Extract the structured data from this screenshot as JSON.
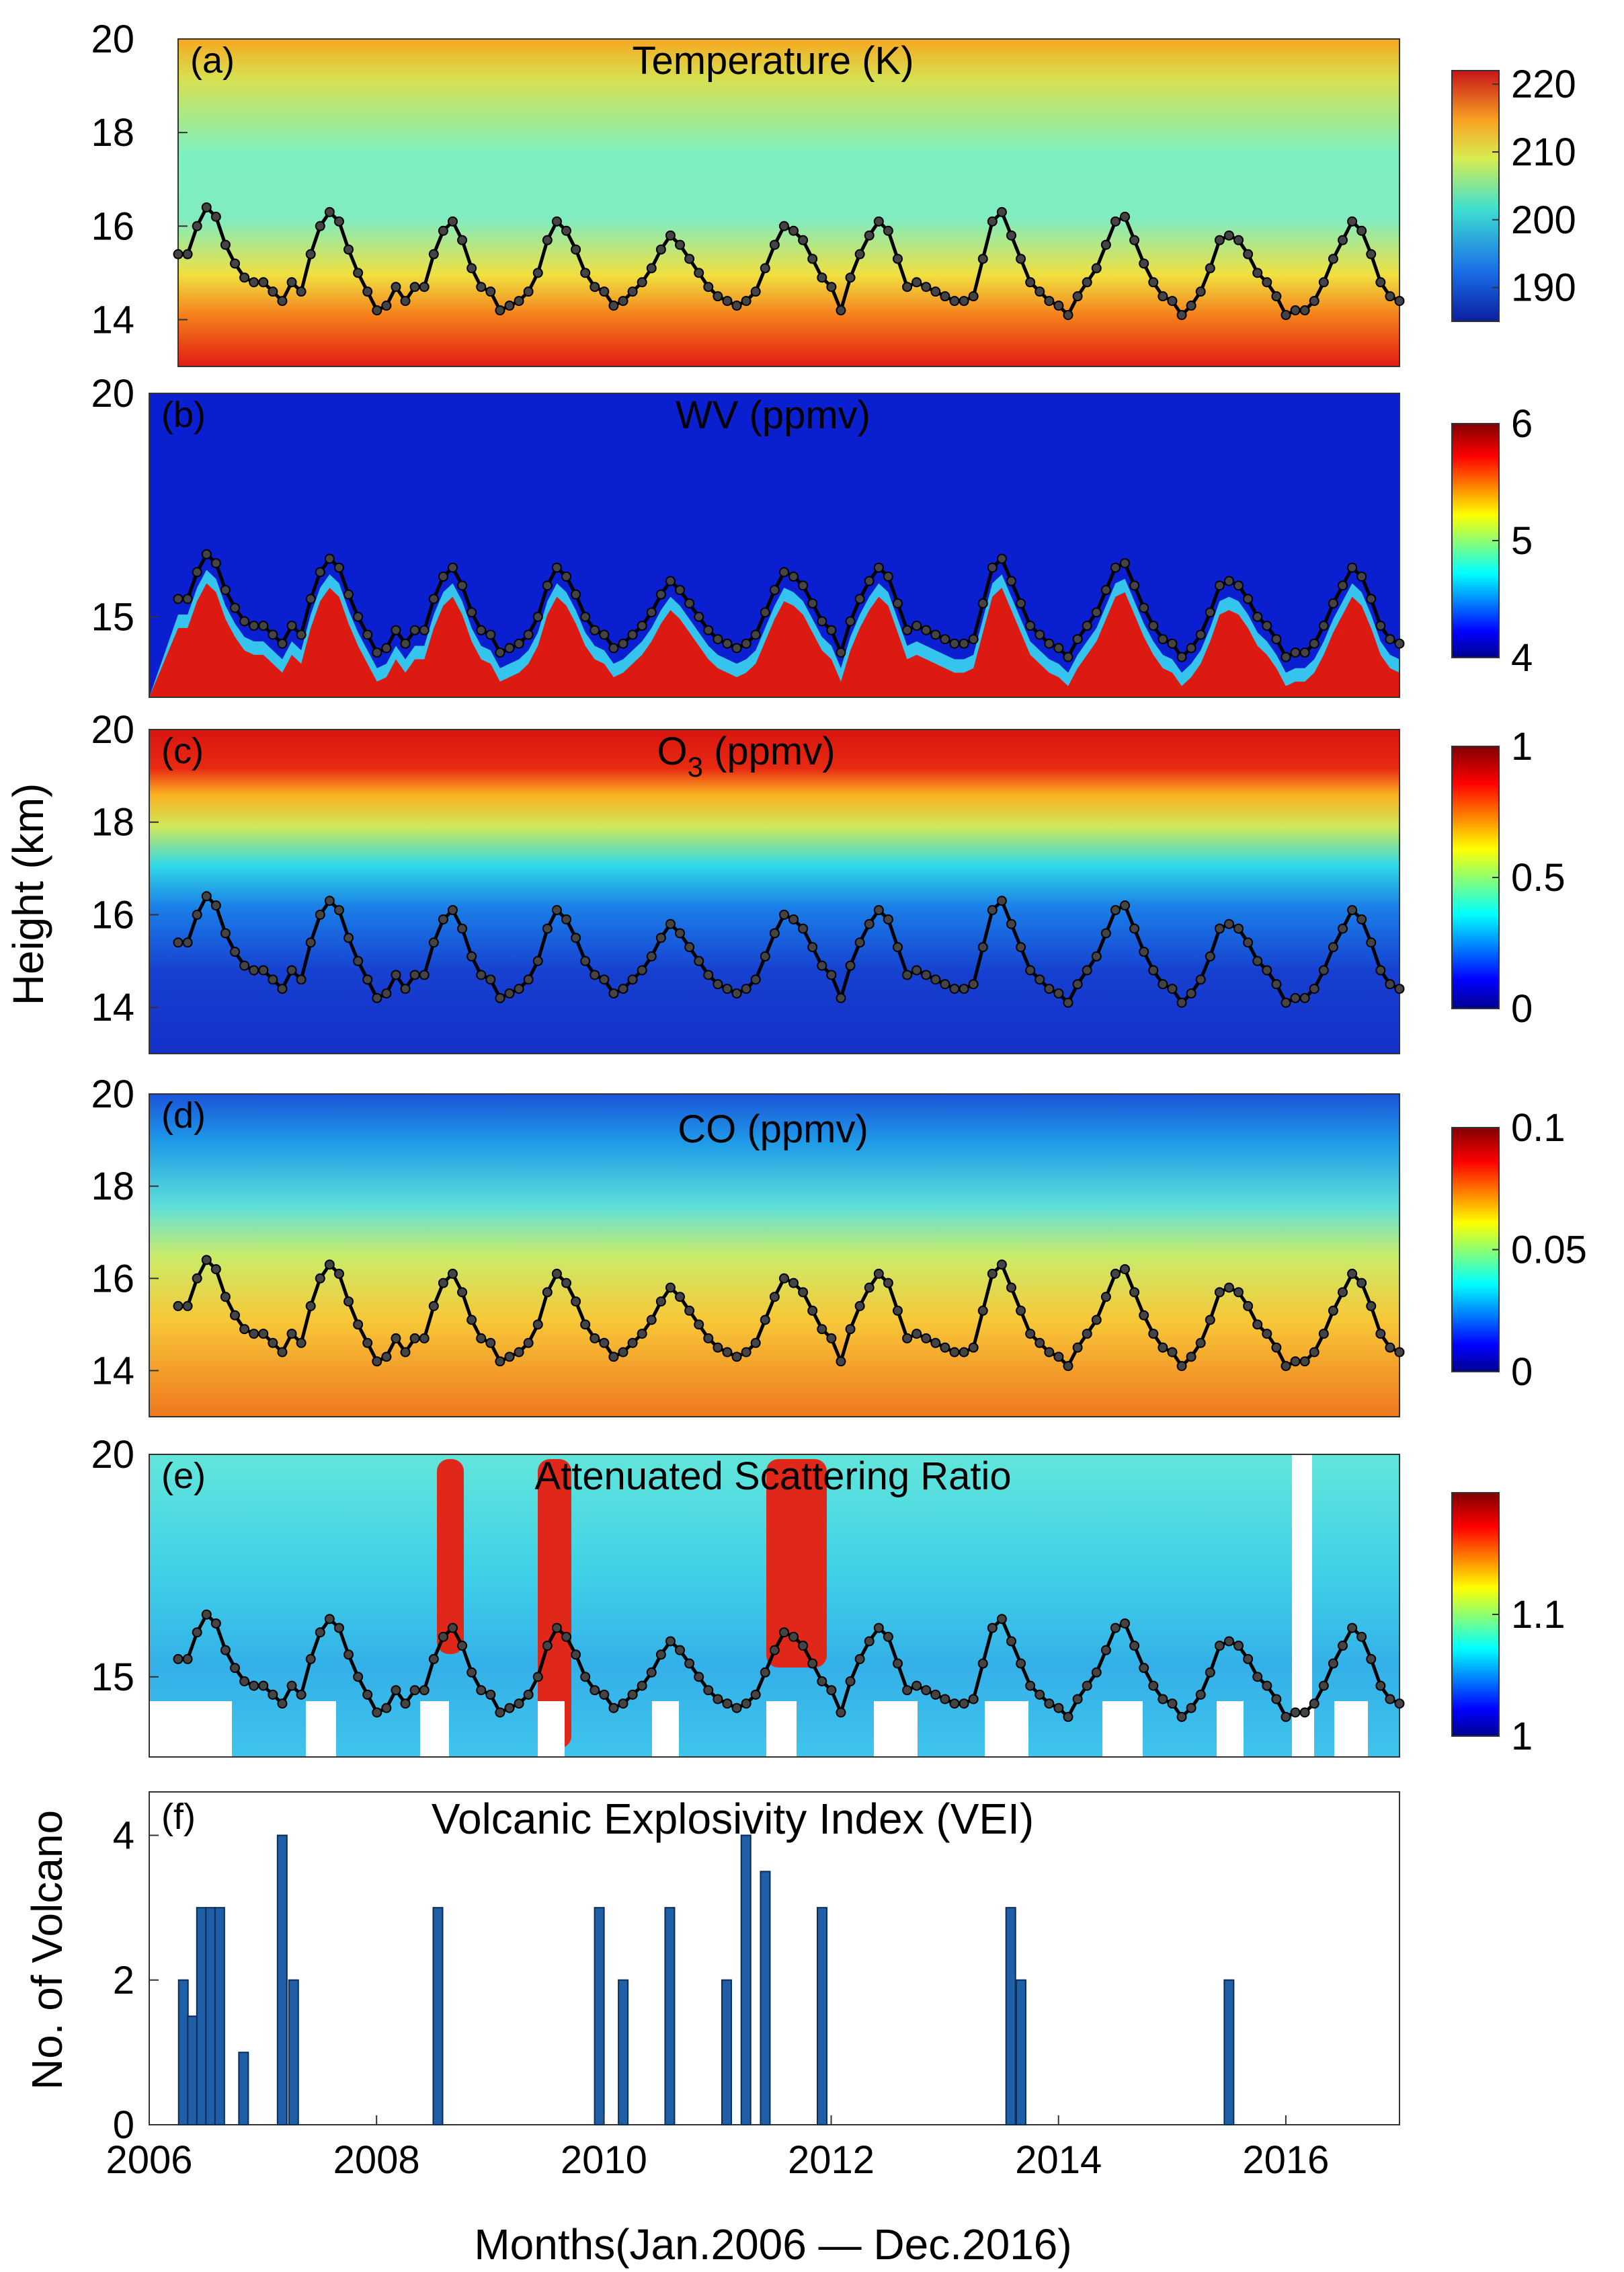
{
  "figure": {
    "ylabel_shared": "Height (km)",
    "xlabel": "Months(Jan.2006 — Dec.2016)",
    "x_ticks": [
      "2006",
      "2008",
      "2010",
      "2012",
      "2014",
      "2016"
    ]
  },
  "chart_data": [
    {
      "type": "heatmap",
      "panel": "(a)",
      "title": "Temperature (K)",
      "ylim": [
        13,
        20
      ],
      "y_ticks": [
        "14",
        "16",
        "18",
        "20"
      ],
      "colorbar": {
        "min": 185,
        "max": 222,
        "ticks": [
          "190",
          "200",
          "210",
          "220"
        ]
      },
      "overlay_line": "tropopause height (km), monthly"
    },
    {
      "type": "heatmap",
      "panel": "(b)",
      "title": "WV (ppmv)",
      "ylim": [
        13.2,
        20
      ],
      "y_ticks": [
        "15",
        "20"
      ],
      "colorbar": {
        "min": 4,
        "max": 6,
        "ticks": [
          "4",
          "5",
          "6"
        ]
      },
      "overlay_line": "tropopause height (km), monthly"
    },
    {
      "type": "heatmap",
      "panel": "(c)",
      "title": "O3 (ppmv)",
      "title_parts": {
        "base": "O",
        "sub": "3",
        "rest": " (ppmv)"
      },
      "ylim": [
        13,
        20
      ],
      "y_ticks": [
        "14",
        "16",
        "18",
        "20"
      ],
      "colorbar": {
        "min": 0,
        "max": 1,
        "ticks": [
          "0",
          "0.5",
          "1"
        ]
      },
      "overlay_line": "tropopause height (km), monthly"
    },
    {
      "type": "heatmap",
      "panel": "(d)",
      "title": "CO (ppmv)",
      "ylim": [
        13,
        20
      ],
      "y_ticks": [
        "14",
        "16",
        "18",
        "20"
      ],
      "colorbar": {
        "min": 0,
        "max": 0.1,
        "ticks": [
          "0",
          "0.05",
          "0.1"
        ]
      },
      "overlay_line": "tropopause height (km), monthly"
    },
    {
      "type": "heatmap",
      "panel": "(e)",
      "title": "Attenuated Scattering Ratio",
      "ylim": [
        13.2,
        20
      ],
      "y_ticks": [
        "15",
        "20"
      ],
      "colorbar": {
        "min": 1,
        "max": 1.2,
        "ticks": [
          "1",
          "1.1"
        ]
      },
      "overlay_line": "tropopause height (km), monthly"
    },
    {
      "type": "bar",
      "panel": "(f)",
      "title": "Volcanic Explosivity Index (VEI)",
      "ylabel": "No. of Volcano",
      "ylim": [
        0,
        4.6
      ],
      "y_ticks": [
        "0",
        "2",
        "4"
      ],
      "xlim": [
        2006,
        2017
      ],
      "x": [
        2006.3,
        2006.38,
        2006.46,
        2006.54,
        2006.62,
        2006.83,
        2007.17,
        2007.27,
        2008.54,
        2009.96,
        2010.17,
        2010.58,
        2011.08,
        2011.25,
        2011.42,
        2011.92,
        2013.58,
        2013.67,
        2015.5
      ],
      "values": [
        2,
        1.5,
        3,
        3,
        3,
        1,
        4,
        2,
        3,
        3,
        2,
        3,
        2,
        4,
        3.5,
        3,
        3,
        2,
        2
      ]
    }
  ],
  "tropopause_km": [
    15.4,
    15.4,
    16.0,
    16.4,
    16.2,
    15.6,
    15.2,
    14.9,
    14.8,
    14.8,
    14.6,
    14.4,
    14.8,
    14.6,
    15.4,
    16.0,
    16.3,
    16.1,
    15.5,
    15.0,
    14.6,
    14.2,
    14.3,
    14.7,
    14.4,
    14.7,
    14.7,
    15.4,
    15.9,
    16.1,
    15.7,
    15.1,
    14.7,
    14.6,
    14.2,
    14.3,
    14.4,
    14.6,
    15.0,
    15.7,
    16.1,
    15.9,
    15.5,
    15.0,
    14.7,
    14.6,
    14.3,
    14.4,
    14.6,
    14.8,
    15.1,
    15.5,
    15.8,
    15.6,
    15.3,
    15.0,
    14.7,
    14.5,
    14.4,
    14.3,
    14.4,
    14.6,
    15.1,
    15.6,
    16.0,
    15.9,
    15.7,
    15.3,
    14.9,
    14.7,
    14.2,
    14.9,
    15.4,
    15.8,
    16.1,
    15.9,
    15.3,
    14.7,
    14.8,
    14.7,
    14.6,
    14.5,
    14.4,
    14.4,
    14.5,
    15.3,
    16.1,
    16.3,
    15.8,
    15.3,
    14.8,
    14.6,
    14.4,
    14.3,
    14.1,
    14.5,
    14.8,
    15.1,
    15.6,
    16.1,
    16.2,
    15.7,
    15.2,
    14.8,
    14.5,
    14.4,
    14.1,
    14.3,
    14.6,
    15.1,
    15.7,
    15.8,
    15.7,
    15.4,
    15.0,
    14.8,
    14.5,
    14.1,
    14.2,
    14.2,
    14.4,
    14.8,
    15.3,
    15.7,
    16.1,
    15.9,
    15.4,
    14.8,
    14.5,
    14.4
  ]
}
